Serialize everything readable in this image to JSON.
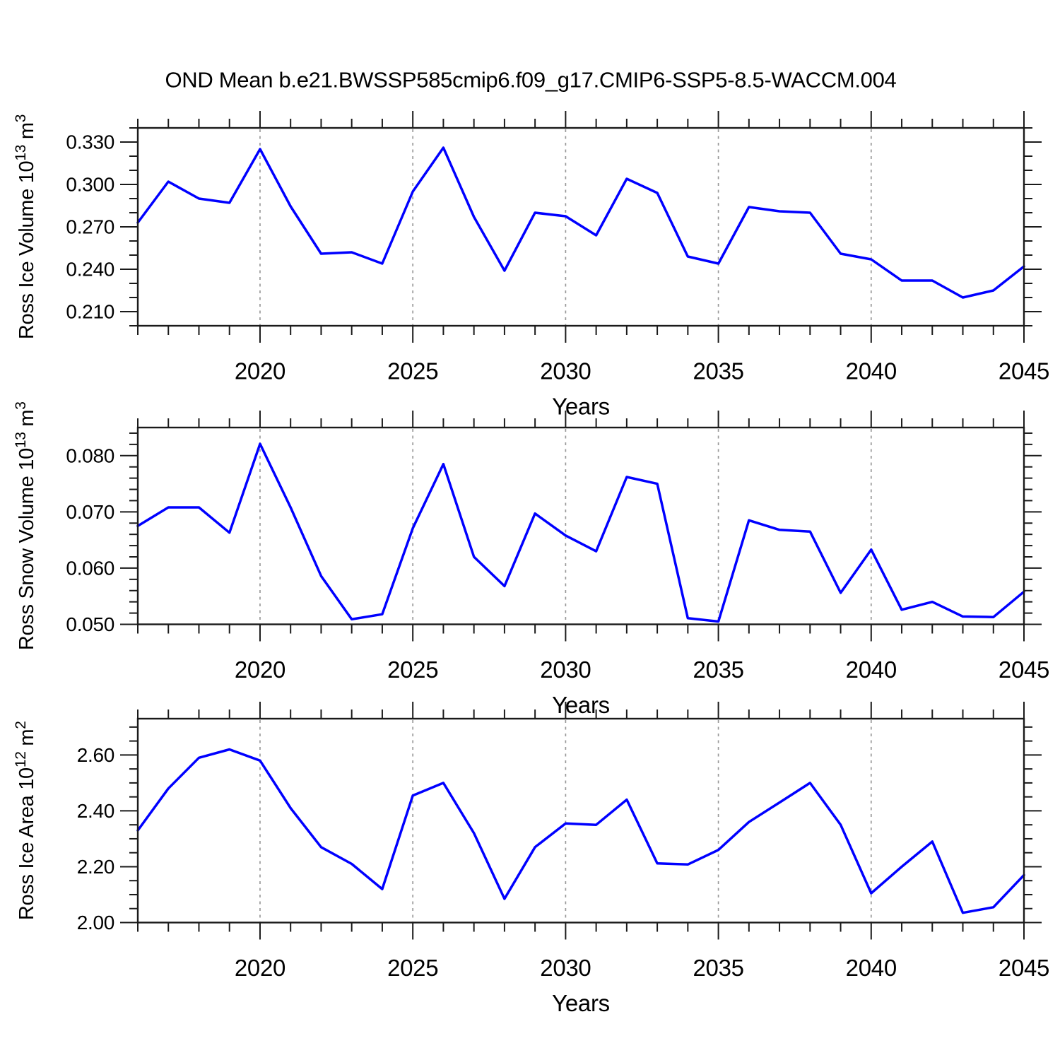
{
  "title": "OND Mean b.e21.BWSSP585cmip6.f09_g17.CMIP6-SSP5-8.5-WACCM.004",
  "colors": {
    "line": "#0000ff",
    "axis": "#1a1a1a",
    "grid": "#999999",
    "background": "#ffffff",
    "text": "#000000"
  },
  "chart_data": [
    {
      "type": "line",
      "name": "ross-ice-volume",
      "title": "",
      "ylabel": "Ross Ice Volume 10^13 m^3",
      "ylabel_rich": [
        {
          "t": "Ross Ice Volume 10"
        },
        {
          "t": "13",
          "sup": true
        },
        {
          "t": " m"
        },
        {
          "t": "3",
          "sup": true
        }
      ],
      "xlabel": "Years",
      "x": [
        2016,
        2017,
        2018,
        2019,
        2020,
        2021,
        2022,
        2023,
        2024,
        2025,
        2026,
        2027,
        2028,
        2029,
        2030,
        2031,
        2032,
        2033,
        2034,
        2035,
        2036,
        2037,
        2038,
        2039,
        2040,
        2041,
        2042,
        2043,
        2044,
        2045
      ],
      "values": [
        0.273,
        0.302,
        0.29,
        0.287,
        0.325,
        0.2845,
        0.251,
        0.252,
        0.244,
        0.295,
        0.326,
        0.277,
        0.239,
        0.28,
        0.2775,
        0.264,
        0.304,
        0.294,
        0.249,
        0.244,
        0.284,
        0.281,
        0.28,
        0.251,
        0.247,
        0.232,
        0.232,
        0.22,
        0.225,
        0.242
      ],
      "xlim": [
        2016,
        2045
      ],
      "ylim": [
        0.2,
        0.34
      ],
      "ytick_values": [
        0.21,
        0.24,
        0.27,
        0.3,
        0.33
      ],
      "ytick_labels": [
        "0.210",
        "0.240",
        "0.270",
        "0.300",
        "0.330"
      ],
      "y_minor_step": 0.01,
      "xtick_values": [
        2020,
        2025,
        2030,
        2035,
        2040,
        2045
      ],
      "xtick_labels": [
        "2020",
        "2025",
        "2030",
        "2035",
        "2040",
        "2045"
      ],
      "x_minor_step": 1,
      "grid_years": [
        2020,
        2025,
        2030,
        2035,
        2040
      ],
      "grid_style": "vertical-dashed",
      "legend": null
    },
    {
      "type": "line",
      "name": "ross-snow-volume",
      "title": "",
      "ylabel": "Ross Snow Volume 10^13 m^3",
      "ylabel_rich": [
        {
          "t": "Ross Snow Volume 10"
        },
        {
          "t": "13",
          "sup": true
        },
        {
          "t": " m"
        },
        {
          "t": "3",
          "sup": true
        }
      ],
      "xlabel": "Years",
      "x": [
        2016,
        2017,
        2018,
        2019,
        2020,
        2021,
        2022,
        2023,
        2024,
        2025,
        2026,
        2027,
        2028,
        2029,
        2030,
        2031,
        2032,
        2033,
        2034,
        2035,
        2036,
        2037,
        2038,
        2039,
        2040,
        2041,
        2042,
        2043,
        2044,
        2045
      ],
      "values": [
        0.0675,
        0.0708,
        0.0708,
        0.0663,
        0.0821,
        0.0708,
        0.0586,
        0.0509,
        0.0518,
        0.0671,
        0.0785,
        0.062,
        0.0568,
        0.0697,
        0.0658,
        0.063,
        0.0762,
        0.075,
        0.0511,
        0.0505,
        0.0685,
        0.0668,
        0.0665,
        0.0556,
        0.0633,
        0.0526,
        0.054,
        0.0514,
        0.0513,
        0.0558
      ],
      "xlim": [
        2016,
        2045
      ],
      "ylim": [
        0.05,
        0.085
      ],
      "ytick_values": [
        0.05,
        0.06,
        0.07,
        0.08
      ],
      "ytick_labels": [
        "0.050",
        "0.060",
        "0.070",
        "0.080"
      ],
      "y_minor_step": 0.002,
      "xtick_values": [
        2020,
        2025,
        2030,
        2035,
        2040,
        2045
      ],
      "xtick_labels": [
        "2020",
        "2025",
        "2030",
        "2035",
        "2040",
        "2045"
      ],
      "x_minor_step": 1,
      "grid_years": [
        2020,
        2025,
        2030,
        2035,
        2040
      ],
      "grid_style": "vertical-dashed",
      "legend": null
    },
    {
      "type": "line",
      "name": "ross-ice-area",
      "title": "",
      "ylabel": "Ross Ice Area 10^12 m^2",
      "ylabel_rich": [
        {
          "t": "Ross Ice Area 10"
        },
        {
          "t": "12",
          "sup": true
        },
        {
          "t": " m"
        },
        {
          "t": "2",
          "sup": true
        }
      ],
      "xlabel": "Years",
      "x": [
        2016,
        2017,
        2018,
        2019,
        2020,
        2021,
        2022,
        2023,
        2024,
        2025,
        2026,
        2027,
        2028,
        2029,
        2030,
        2031,
        2032,
        2033,
        2034,
        2035,
        2036,
        2037,
        2038,
        2039,
        2040,
        2041,
        2042,
        2043,
        2044,
        2045
      ],
      "values": [
        2.33,
        2.48,
        2.59,
        2.62,
        2.58,
        2.41,
        2.27,
        2.21,
        2.12,
        2.455,
        2.5,
        2.32,
        2.085,
        2.27,
        2.355,
        2.35,
        2.44,
        2.212,
        2.208,
        2.26,
        2.36,
        2.43,
        2.5,
        2.35,
        2.105,
        2.2,
        2.29,
        2.035,
        2.055,
        2.17
      ],
      "xlim": [
        2016,
        2045
      ],
      "ylim": [
        2.0,
        2.73
      ],
      "ytick_values": [
        2.0,
        2.2,
        2.4,
        2.6
      ],
      "ytick_labels": [
        "2.00",
        "2.20",
        "2.40",
        "2.60"
      ],
      "y_minor_step": 0.05,
      "xtick_values": [
        2020,
        2025,
        2030,
        2035,
        2040,
        2045
      ],
      "xtick_labels": [
        "2020",
        "2025",
        "2030",
        "2035",
        "2040",
        "2045"
      ],
      "x_minor_step": 1,
      "grid_years": [
        2020,
        2025,
        2030,
        2035,
        2040
      ],
      "grid_style": "vertical-dashed",
      "legend": null
    }
  ]
}
